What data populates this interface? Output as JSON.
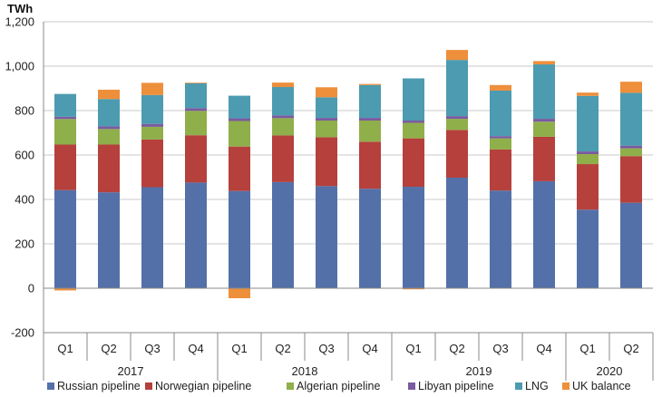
{
  "chart_data": {
    "type": "bar",
    "stacked": true,
    "unit_label": "TWh",
    "ylim": [
      -200,
      1200
    ],
    "yticks": [
      -200,
      0,
      200,
      400,
      600,
      800,
      1000,
      1200
    ],
    "ytick_labels": [
      "-200",
      "0",
      "200",
      "400",
      "600",
      "800",
      "1,000",
      "1,200"
    ],
    "categories": [
      {
        "quarter": "Q1",
        "year": "2017"
      },
      {
        "quarter": "Q2",
        "year": "2017"
      },
      {
        "quarter": "Q3",
        "year": "2017"
      },
      {
        "quarter": "Q4",
        "year": "2017"
      },
      {
        "quarter": "Q1",
        "year": "2018"
      },
      {
        "quarter": "Q2",
        "year": "2018"
      },
      {
        "quarter": "Q3",
        "year": "2018"
      },
      {
        "quarter": "Q4",
        "year": "2018"
      },
      {
        "quarter": "Q1",
        "year": "2019"
      },
      {
        "quarter": "Q2",
        "year": "2019"
      },
      {
        "quarter": "Q3",
        "year": "2019"
      },
      {
        "quarter": "Q4",
        "year": "2019"
      },
      {
        "quarter": "Q1",
        "year": "2020"
      },
      {
        "quarter": "Q2",
        "year": "2020"
      }
    ],
    "years": [
      "2017",
      "2018",
      "2019",
      "2020"
    ],
    "series": [
      {
        "name": "Russian pipeline",
        "color": "#5470a8",
        "values": [
          442,
          432,
          455,
          476,
          438,
          478,
          460,
          448,
          457,
          498,
          440,
          482,
          354,
          385
        ]
      },
      {
        "name": "Norwegian pipeline",
        "color": "#b5403c",
        "values": [
          205,
          215,
          215,
          213,
          200,
          210,
          220,
          212,
          218,
          215,
          185,
          200,
          205,
          210
        ]
      },
      {
        "name": "Algerian pipeline",
        "color": "#8faf4a",
        "values": [
          115,
          70,
          57,
          110,
          115,
          78,
          75,
          95,
          70,
          50,
          50,
          68,
          45,
          35
        ]
      },
      {
        "name": "Libyan pipeline",
        "color": "#7a5aa0",
        "values": [
          10,
          12,
          13,
          12,
          12,
          12,
          12,
          12,
          10,
          12,
          10,
          13,
          12,
          12
        ]
      },
      {
        "name": "LNG",
        "color": "#4c9bb0",
        "values": [
          103,
          123,
          130,
          112,
          102,
          128,
          93,
          148,
          190,
          253,
          205,
          245,
          250,
          238
        ]
      },
      {
        "name": "UK balance",
        "color": "#ee8f3b",
        "values": [
          -10,
          42,
          55,
          3,
          -45,
          20,
          45,
          5,
          -5,
          45,
          25,
          15,
          15,
          50
        ]
      }
    ]
  }
}
